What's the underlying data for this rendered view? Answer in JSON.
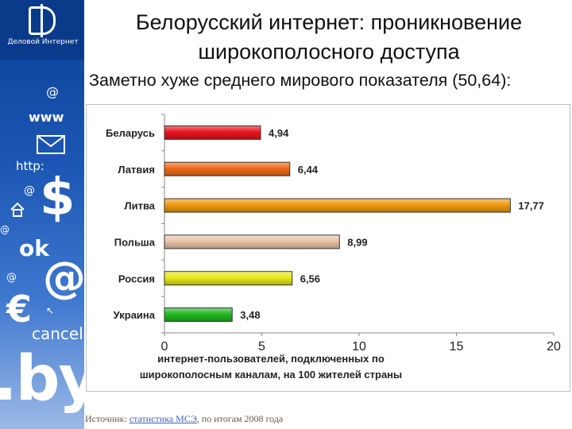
{
  "sidebar": {
    "logo_text": "Деловой Интернет",
    "symbols": {
      "at": "@",
      "www": "www",
      "http": "http:",
      "dollar": "$",
      "ok": "ok",
      "euro": "€",
      "cancel": "cancel",
      "by": ".by"
    }
  },
  "slide": {
    "title_line1": "Белорусский интернет: проникновение",
    "title_line2": "широкополосного доступа",
    "subtitle": "Заметно хуже среднего мирового показателя (50,64):"
  },
  "source": {
    "prefix": "Источник: ",
    "link": "статистика МСЭ",
    "suffix": ", по итогам 2008 года"
  },
  "colors": {
    "Беларусь": "#e8141e",
    "Латвия": "#ee6a18",
    "Литва": "#ee9a10",
    "Польша": "#e8c4a8",
    "Россия": "#e8e818",
    "Украина": "#22b822"
  },
  "chart_data": {
    "type": "bar",
    "orientation": "horizontal",
    "categories": [
      "Беларусь",
      "Латвия",
      "Литва",
      "Польша",
      "Россия",
      "Украина"
    ],
    "values": [
      4.94,
      6.44,
      17.77,
      8.99,
      6.56,
      3.48
    ],
    "value_labels": [
      "4,94",
      "6,44",
      "17,77",
      "8,99",
      "6,56",
      "3,48"
    ],
    "xlim": [
      0,
      20
    ],
    "xticks": [
      0,
      5,
      10,
      15,
      20
    ],
    "xlabel_line1": "интернет-пользователей, подключенных  по",
    "xlabel_line2": "широкополосным каналам, на 100 жителей страны",
    "grid": false
  }
}
